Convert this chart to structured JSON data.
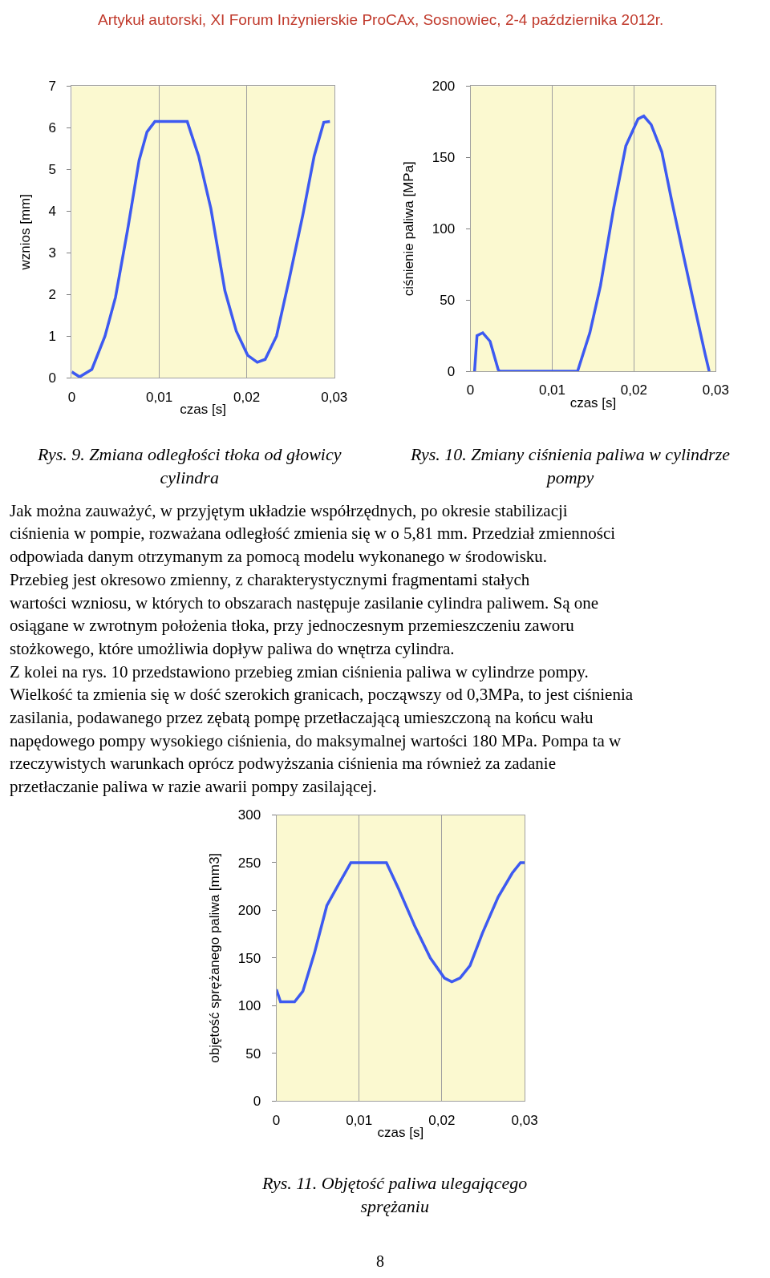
{
  "chart_data": [
    {
      "type": "line",
      "title": "Rys. 9. Zmiana odległości tłoka od głowicy cylindra",
      "xlabel": "czas [s]",
      "ylabel": "wznios [mm]",
      "xlim": [
        0,
        0.03
      ],
      "xticks": [
        0,
        {
          "value": 0.01,
          "label": "0,01"
        },
        {
          "value": 0.02,
          "label": "0,02"
        },
        {
          "value": 0.03,
          "label": "0,03"
        }
      ],
      "ylim": [
        0,
        7
      ],
      "yticks": [
        0,
        1,
        2,
        3,
        4,
        5,
        6,
        7
      ],
      "grid": "x",
      "annotations": [
        "Artykuł autorski, XI Forum Inżynierskie ProCAx, Sosnowiec, 2-4 października 2012r."
      ],
      "series": [
        {
          "color": "#3d5af1",
          "x": [
            0,
            0.0009,
            0.0023,
            0.0038,
            0.005,
            0.0064,
            0.0077,
            0.0086,
            0.0095,
            0.0132,
            0.0145,
            0.0159,
            0.0175,
            0.0188,
            0.0201,
            0.0212,
            0.0221,
            0.0234,
            0.0248,
            0.0264,
            0.0277,
            0.0288,
            0.0295
          ],
          "values": [
            0.14,
            0.02,
            0.2,
            1.0,
            1.93,
            3.57,
            5.22,
            5.9,
            6.15,
            6.15,
            5.32,
            4.06,
            2.09,
            1.12,
            0.54,
            0.37,
            0.44,
            1.0,
            2.32,
            3.9,
            5.32,
            6.13,
            6.15
          ]
        }
      ]
    },
    {
      "type": "line",
      "title": "Rys. 10. Zmiany ciśnienia paliwa w cylindrze pompy",
      "xlabel": "czas [s]",
      "ylabel": "ciśnienie paliwa [MPa]",
      "xlim": [
        0,
        0.03
      ],
      "xticks": [
        0,
        {
          "value": 0.01,
          "label": "0,01"
        },
        {
          "value": 0.02,
          "label": "0,02"
        },
        {
          "value": 0.03,
          "label": "0,03"
        }
      ],
      "ylim": [
        0,
        200
      ],
      "yticks": [
        0,
        50,
        100,
        150,
        200
      ],
      "grid": "x",
      "annotations": [
        "Jak można zauważyć, w przyjętym układzie współrzędnych, po okresie stabilizacji",
        "ciśnienia w pompie, rozważana odległość zmienia się w o 5,81 mm. Przedział zmienności",
        "odpowiada danym otrzymanym za pomocą modelu wykonanego w środowisku.",
        "Przebieg jest okresowo zmienny, z charakterystycznymi fragmentami stałych",
        "wartości wzniosu, w których to obszarach następuje zasilanie cylindra paliwem. Są one",
        "osiągane w zwrotnym położenia tłoka, przy jednoczesnym przemieszczeniu zaworu",
        "stożkowego, które umożliwia dopływ paliwa do wnętrza cylindra.",
        "Z kolei na rys. 10 przedstawiono przebieg zmian ciśnienia paliwa w cylindrze pompy.",
        "Wielkość ta zmienia się w dość szerokich granicach, począwszy od 0,3MPa, to jest ciśnienia",
        "zasilania, podawanego przez zębatą pompę przetłaczającą umieszczoną na końcu wału",
        "napędowego pompy wysokiego ciśnienia, do maksymalnej wartości 180 MPa. Pompa ta w",
        "rzeczywistych warunkach oprócz podwyższania ciśnienia ma również za zadanie",
        "przetłaczanie paliwa w razie awarii pompy zasilającej."
      ],
      "series": [
        {
          "color": "#3d5af1",
          "x": [
            0.0005,
            0.0008,
            0.0015,
            0.0024,
            0.0034,
            0.0036,
            0.0131,
            0.0146,
            0.0159,
            0.0175,
            0.019,
            0.0205,
            0.0212,
            0.0221,
            0.0234,
            0.0246,
            0.0261,
            0.0275,
            0.0287,
            0.0292
          ],
          "values": [
            0,
            25,
            27,
            21,
            1,
            0,
            0,
            27,
            60,
            114,
            158,
            177,
            179,
            173,
            154,
            120,
            80,
            43,
            12,
            0
          ]
        }
      ]
    },
    {
      "type": "line",
      "title": "Rys. 11. Objętość paliwa ulegającego sprężaniu",
      "xlabel": "czas [s]",
      "ylabel": "objętość sprężanego paliwa [mm3]",
      "xlim": [
        0,
        0.03
      ],
      "xticks": [
        0,
        {
          "value": 0.01,
          "label": "0,01"
        },
        {
          "value": 0.02,
          "label": "0,02"
        },
        {
          "value": 0.03,
          "label": "0,03"
        }
      ],
      "ylim": [
        0,
        300
      ],
      "yticks": [
        0,
        50,
        100,
        150,
        200,
        250,
        300
      ],
      "grid": "x",
      "annotations": [
        "8"
      ],
      "series": [
        {
          "color": "#3d5af1",
          "x": [
            0,
            0.0005,
            0.0022,
            0.0032,
            0.0046,
            0.0061,
            0.0075,
            0.009,
            0.0133,
            0.0148,
            0.0167,
            0.0186,
            0.0203,
            0.0212,
            0.0222,
            0.0234,
            0.0249,
            0.0268,
            0.0285,
            0.0295,
            0.03
          ],
          "values": [
            117,
            104,
            104,
            115,
            155,
            205,
            227,
            250,
            250,
            222,
            184,
            150,
            129,
            125,
            129,
            142,
            176,
            214,
            239,
            250,
            250
          ]
        }
      ]
    }
  ]
}
